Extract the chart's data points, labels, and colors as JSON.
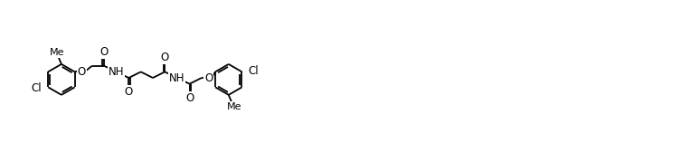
{
  "background": "#ffffff",
  "line_color": "#000000",
  "line_width": 1.3,
  "font_size": 8.5,
  "figsize": [
    7.53,
    1.58
  ],
  "dpi": 100,
  "xlim": [
    -2,
    100
  ],
  "ylim": [
    -9,
    9
  ]
}
